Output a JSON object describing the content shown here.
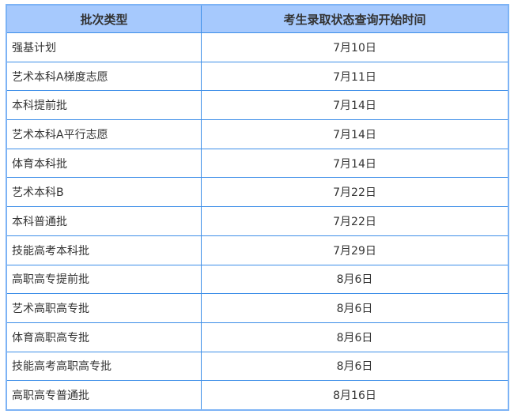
{
  "table": {
    "headers": [
      "批次类型",
      "考生录取状态查询开始时间"
    ],
    "rows": [
      [
        "强基计划",
        "7月10日"
      ],
      [
        "艺术本科A梯度志愿",
        "7月11日"
      ],
      [
        "本科提前批",
        "7月14日"
      ],
      [
        "艺术本科A平行志愿",
        "7月14日"
      ],
      [
        "体育本科批",
        "7月14日"
      ],
      [
        "艺术本科B",
        "7月22日"
      ],
      [
        "本科普通批",
        "7月22日"
      ],
      [
        "技能高考本科批",
        "7月29日"
      ],
      [
        "高职高专提前批",
        "8月6日"
      ],
      [
        "艺术高职高专批",
        "8月6日"
      ],
      [
        "体育高职高专批",
        "8月6日"
      ],
      [
        "技能高考高职高专批",
        "8月6日"
      ],
      [
        "高职高专普通批",
        "8月16日"
      ]
    ]
  },
  "colors": {
    "header_bg": "#a6c9fd",
    "border": "#3d8ee8"
  }
}
